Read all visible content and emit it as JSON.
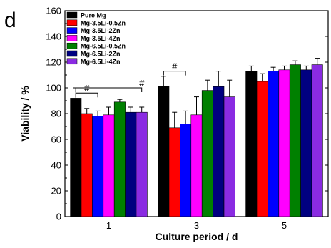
{
  "panel_label": "d",
  "chart_data": {
    "type": "bar",
    "title": "",
    "xlabel": "Culture period / d",
    "ylabel": "Viability / %",
    "ylim": [
      0,
      160
    ],
    "yticks": [
      0,
      20,
      40,
      60,
      80,
      100,
      120,
      140,
      160
    ],
    "categories": [
      "1",
      "3",
      "5"
    ],
    "legend_position": "top-left",
    "grid": false,
    "series": [
      {
        "name": "Pure Mg",
        "color": "#000000",
        "values": [
          92,
          101,
          113
        ],
        "errors": [
          8,
          8,
          4
        ]
      },
      {
        "name": "Mg-3.5Li-0.5Zn",
        "color": "#ff0000",
        "values": [
          80,
          69,
          105
        ],
        "errors": [
          4,
          12,
          6
        ]
      },
      {
        "name": "Mg-3.5Li-2Zn",
        "color": "#0000ff",
        "values": [
          78,
          72,
          113
        ],
        "errors": [
          4,
          10,
          3
        ]
      },
      {
        "name": "Mg-3.5Li-4Zn",
        "color": "#ff00ff",
        "values": [
          79,
          79,
          114
        ],
        "errors": [
          6,
          14,
          3
        ]
      },
      {
        "name": "Mg-6.5Li-0.5Zn",
        "color": "#008000",
        "values": [
          89,
          98,
          118
        ],
        "errors": [
          2,
          8,
          3
        ]
      },
      {
        "name": "Mg-6.5Li-2Zn",
        "color": "#000080",
        "values": [
          81,
          101,
          114
        ],
        "errors": [
          4,
          12,
          3
        ]
      },
      {
        "name": "Mg-6.5Li-4Zn",
        "color": "#8a2be2",
        "values": [
          81,
          93,
          118
        ],
        "errors": [
          4,
          13,
          5
        ]
      }
    ],
    "annotations": [
      {
        "text": "#",
        "group": "1",
        "from_series": 0,
        "to_series": 2
      },
      {
        "text": "#",
        "group": "1",
        "from_series": 0,
        "to_series": 6
      },
      {
        "text": "#",
        "group": "3",
        "from_series": 0,
        "to_series": 2
      }
    ]
  }
}
